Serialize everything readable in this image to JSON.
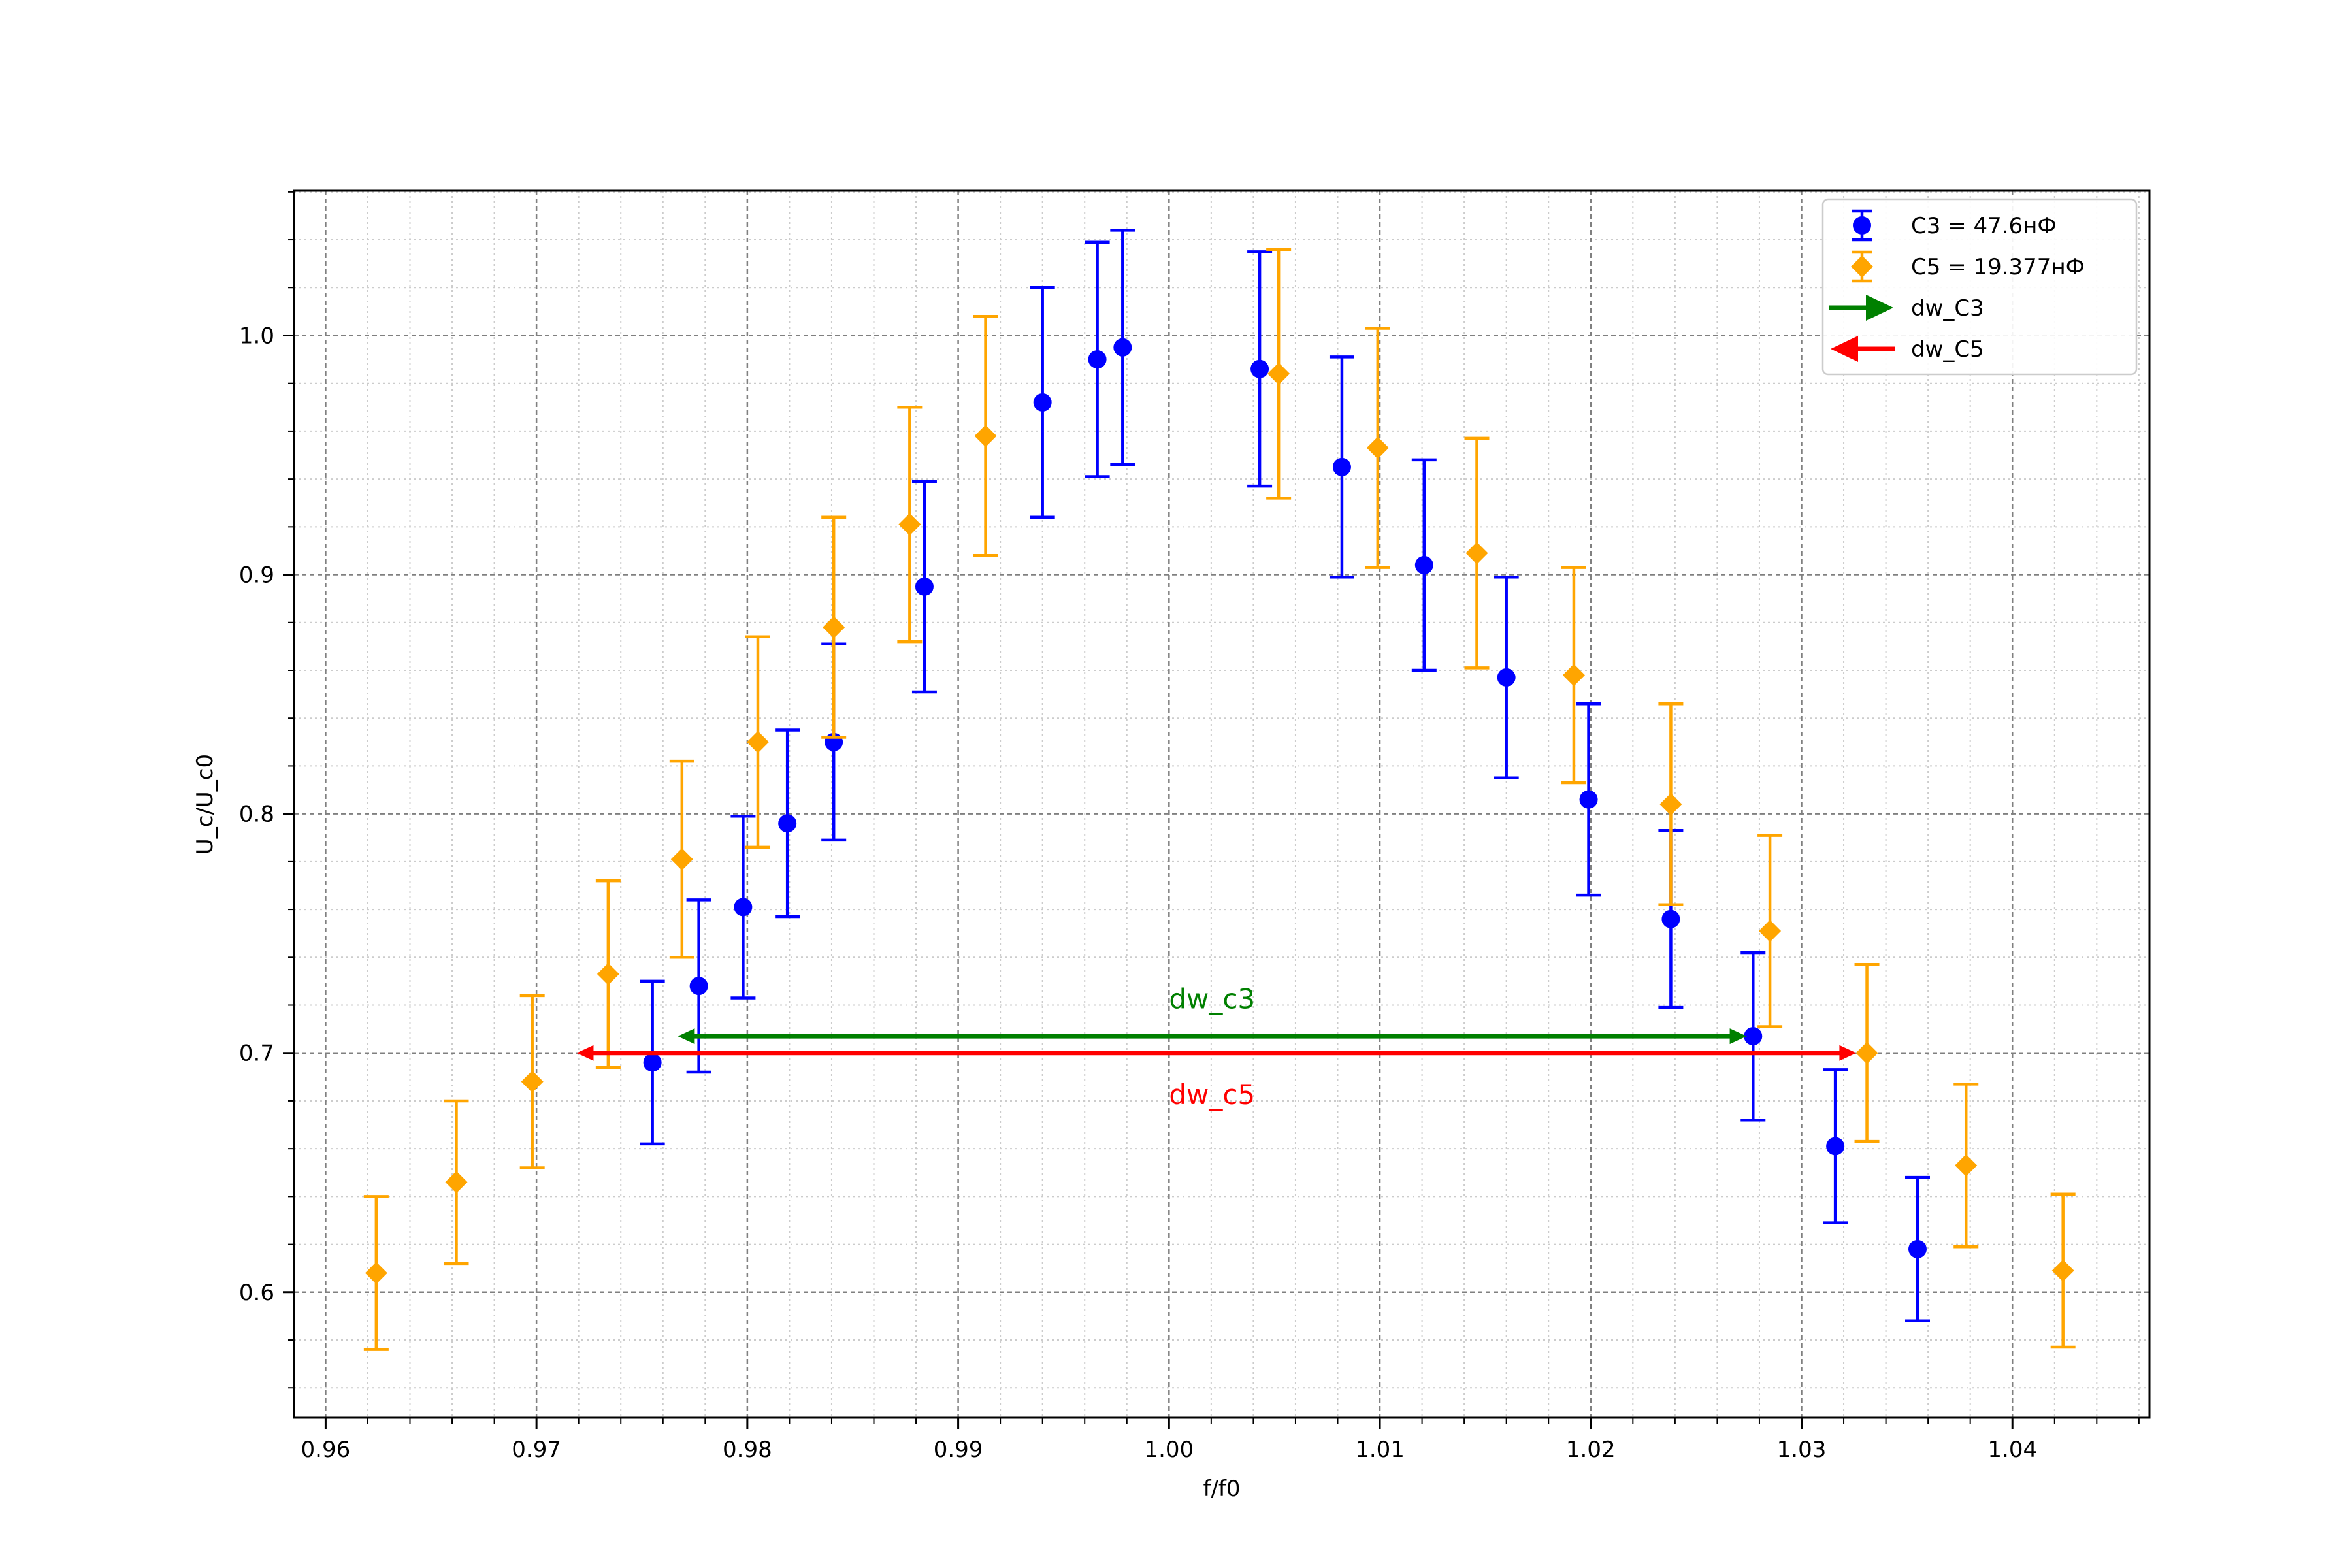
{
  "chart_data": {
    "type": "scatter",
    "title": "",
    "xlabel": "f/f0",
    "ylabel": "U_c/U_c0",
    "xlim": [
      0.9585,
      1.0465
    ],
    "ylim": [
      0.5475,
      1.0605
    ],
    "xticks": [
      0.96,
      0.97,
      0.98,
      0.99,
      1.0,
      1.01,
      1.02,
      1.03,
      1.04
    ],
    "xtick_labels": [
      "0.96",
      "0.97",
      "0.98",
      "0.99",
      "1.00",
      "1.01",
      "1.02",
      "1.03",
      "1.04"
    ],
    "yticks": [
      0.6,
      0.7,
      0.8,
      0.9,
      1.0
    ],
    "ytick_labels": [
      "0.6",
      "0.7",
      "0.8",
      "0.9",
      "1.0"
    ],
    "grid": true,
    "legend_position": "top-right",
    "series": [
      {
        "name": "C3 = 47.6нФ",
        "color": "#0000ff",
        "marker": "circle",
        "points": [
          {
            "x": 0.9755,
            "y": 0.696,
            "err": 0.034
          },
          {
            "x": 0.9777,
            "y": 0.728,
            "err": 0.036
          },
          {
            "x": 0.9798,
            "y": 0.761,
            "err": 0.038
          },
          {
            "x": 0.9819,
            "y": 0.796,
            "err": 0.039
          },
          {
            "x": 0.9841,
            "y": 0.83,
            "err": 0.041
          },
          {
            "x": 0.9884,
            "y": 0.895,
            "err": 0.044
          },
          {
            "x": 0.994,
            "y": 0.972,
            "err": 0.048
          },
          {
            "x": 0.9966,
            "y": 0.99,
            "err": 0.049
          },
          {
            "x": 0.9978,
            "y": 0.995,
            "err": 0.049
          },
          {
            "x": 1.0043,
            "y": 0.986,
            "err": 0.049
          },
          {
            "x": 1.0082,
            "y": 0.945,
            "err": 0.046
          },
          {
            "x": 1.0121,
            "y": 0.904,
            "err": 0.044
          },
          {
            "x": 1.016,
            "y": 0.857,
            "err": 0.042
          },
          {
            "x": 1.0199,
            "y": 0.806,
            "err": 0.04
          },
          {
            "x": 1.0238,
            "y": 0.756,
            "err": 0.037
          },
          {
            "x": 1.0277,
            "y": 0.707,
            "err": 0.035
          },
          {
            "x": 1.0316,
            "y": 0.661,
            "err": 0.032
          },
          {
            "x": 1.0355,
            "y": 0.618,
            "err": 0.03
          }
        ]
      },
      {
        "name": "C5 = 19.377нФ",
        "color": "#ffa500",
        "marker": "diamond",
        "points": [
          {
            "x": 0.9624,
            "y": 0.608,
            "err": 0.032
          },
          {
            "x": 0.9662,
            "y": 0.646,
            "err": 0.034
          },
          {
            "x": 0.9698,
            "y": 0.688,
            "err": 0.036
          },
          {
            "x": 0.9734,
            "y": 0.733,
            "err": 0.039
          },
          {
            "x": 0.9769,
            "y": 0.781,
            "err": 0.041
          },
          {
            "x": 0.9805,
            "y": 0.83,
            "err": 0.044
          },
          {
            "x": 0.9841,
            "y": 0.878,
            "err": 0.046
          },
          {
            "x": 0.9877,
            "y": 0.921,
            "err": 0.049
          },
          {
            "x": 0.9913,
            "y": 0.958,
            "err": 0.05
          },
          {
            "x": 1.0052,
            "y": 0.984,
            "err": 0.052
          },
          {
            "x": 1.0099,
            "y": 0.953,
            "err": 0.05
          },
          {
            "x": 1.0146,
            "y": 0.909,
            "err": 0.048
          },
          {
            "x": 1.0192,
            "y": 0.858,
            "err": 0.045
          },
          {
            "x": 1.0238,
            "y": 0.804,
            "err": 0.042
          },
          {
            "x": 1.0285,
            "y": 0.751,
            "err": 0.04
          },
          {
            "x": 1.0331,
            "y": 0.7,
            "err": 0.037
          },
          {
            "x": 1.0378,
            "y": 0.653,
            "err": 0.034
          },
          {
            "x": 1.0424,
            "y": 0.609,
            "err": 0.032
          }
        ]
      }
    ],
    "arrows": [
      {
        "name": "dw_C3",
        "label": "dw_c3",
        "color": "#008000",
        "x_start": 0.9767,
        "x_end": 1.0274,
        "y": 0.707
      },
      {
        "name": "dw_C5",
        "label": "dw_c5",
        "color": "#ff0000",
        "x_start": 0.9719,
        "x_end": 1.0326,
        "y": 0.7
      }
    ],
    "annotations": [
      {
        "text": "dw_c3",
        "color": "#008000",
        "x": 1.0,
        "y": 0.7225
      },
      {
        "text": "dw_c5",
        "color": "#ff0000",
        "x": 1.0,
        "y": 0.6825
      }
    ],
    "legend": [
      {
        "label": "C3 = 47.6нФ",
        "color": "#0000ff",
        "type": "errorbar-circle"
      },
      {
        "label": "C5 = 19.377нФ",
        "color": "#ffa500",
        "type": "errorbar-diamond"
      },
      {
        "label": "dw_C3",
        "color": "#008000",
        "type": "arrow-right"
      },
      {
        "label": "dw_C5",
        "color": "#ff0000",
        "type": "arrow-left"
      }
    ]
  }
}
